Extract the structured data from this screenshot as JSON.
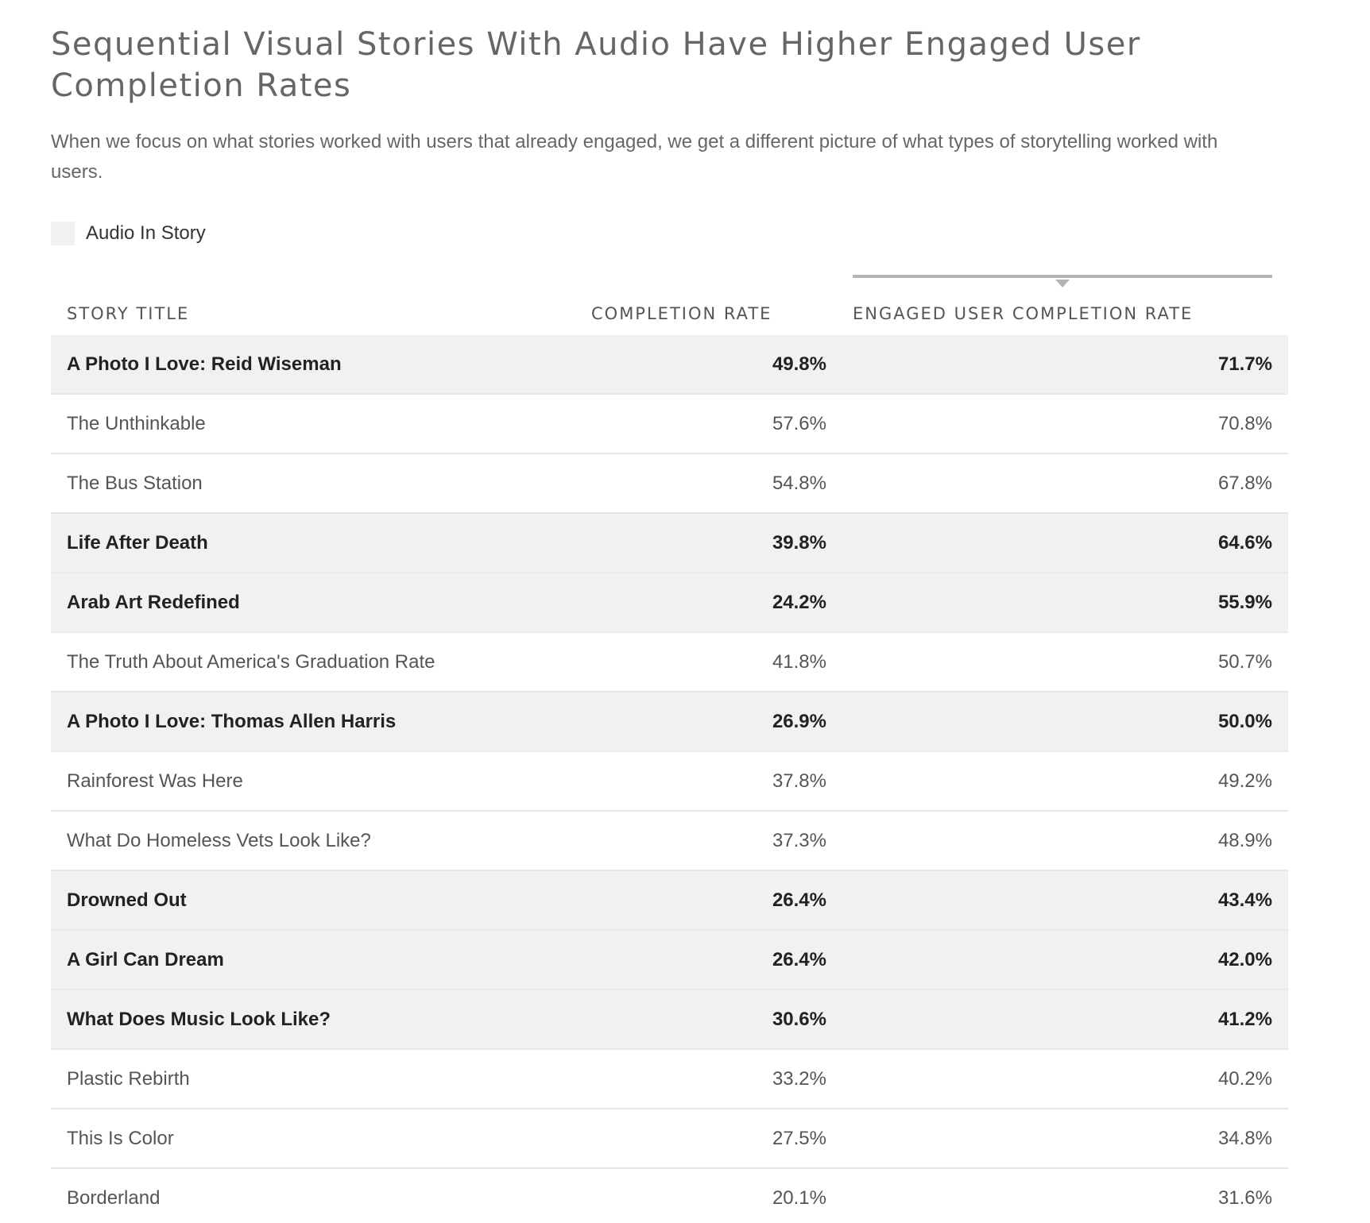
{
  "title": "Sequential Visual Stories With Audio Have Higher Engaged User Completion Rates",
  "subtitle": "When we focus on what stories worked with users that already engaged, we get a different picture of what types of storytelling worked with users.",
  "legend": {
    "label": "Audio In Story",
    "swatch_color": "#f1f1f1"
  },
  "chart_data": {
    "type": "table",
    "sorted_by": "engaged_user_completion_rate",
    "sort_direction": "descending",
    "columns": [
      "STORY TITLE",
      "COMPLETION RATE",
      "ENGAGED USER COMPLETION RATE"
    ],
    "rows": [
      {
        "title": "A Photo I Love: Reid Wiseman",
        "completion_rate": "49.8%",
        "engaged_rate": "71.7%",
        "audio": true
      },
      {
        "title": "The Unthinkable",
        "completion_rate": "57.6%",
        "engaged_rate": "70.8%",
        "audio": false
      },
      {
        "title": "The Bus Station",
        "completion_rate": "54.8%",
        "engaged_rate": "67.8%",
        "audio": false
      },
      {
        "title": "Life After Death",
        "completion_rate": "39.8%",
        "engaged_rate": "64.6%",
        "audio": true
      },
      {
        "title": "Arab Art Redefined",
        "completion_rate": "24.2%",
        "engaged_rate": "55.9%",
        "audio": true
      },
      {
        "title": "The Truth About America's Graduation Rate",
        "completion_rate": "41.8%",
        "engaged_rate": "50.7%",
        "audio": false
      },
      {
        "title": "A Photo I Love: Thomas Allen Harris",
        "completion_rate": "26.9%",
        "engaged_rate": "50.0%",
        "audio": true
      },
      {
        "title": "Rainforest Was Here",
        "completion_rate": "37.8%",
        "engaged_rate": "49.2%",
        "audio": false
      },
      {
        "title": "What Do Homeless Vets Look Like?",
        "completion_rate": "37.3%",
        "engaged_rate": "48.9%",
        "audio": false
      },
      {
        "title": "Drowned Out",
        "completion_rate": "26.4%",
        "engaged_rate": "43.4%",
        "audio": true
      },
      {
        "title": "A Girl Can Dream",
        "completion_rate": "26.4%",
        "engaged_rate": "42.0%",
        "audio": true
      },
      {
        "title": "What Does Music Look Like?",
        "completion_rate": "30.6%",
        "engaged_rate": "41.2%",
        "audio": true
      },
      {
        "title": "Plastic Rebirth",
        "completion_rate": "33.2%",
        "engaged_rate": "40.2%",
        "audio": false
      },
      {
        "title": "This Is Color",
        "completion_rate": "27.5%",
        "engaged_rate": "34.8%",
        "audio": false
      },
      {
        "title": "Borderland",
        "completion_rate": "20.1%",
        "engaged_rate": "31.6%",
        "audio": false
      }
    ]
  }
}
